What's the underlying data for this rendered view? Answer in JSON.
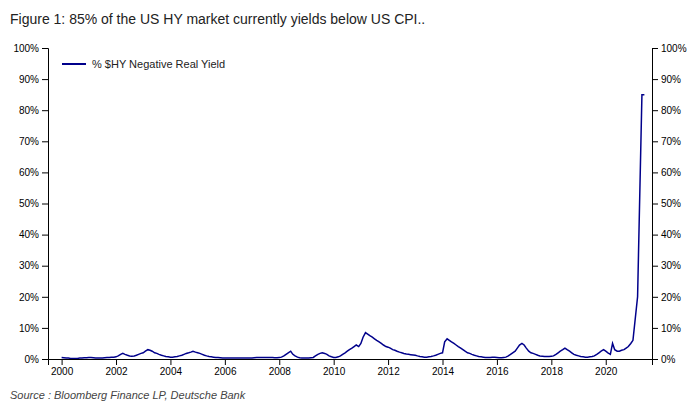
{
  "chart_data": {
    "type": "line",
    "title": "Figure 1: 85% of the US HY market currently yields below US CPI..",
    "annotations": [
      "Source : Bloomberg Finance LP, Deutsche Bank"
    ],
    "x": [
      2000.0,
      2000.08,
      2000.17,
      2000.25,
      2000.33,
      2000.42,
      2000.5,
      2000.58,
      2000.67,
      2000.75,
      2000.83,
      2000.92,
      2001.0,
      2001.08,
      2001.17,
      2001.25,
      2001.33,
      2001.42,
      2001.5,
      2001.58,
      2001.67,
      2001.75,
      2001.83,
      2001.92,
      2002.0,
      2002.08,
      2002.17,
      2002.25,
      2002.33,
      2002.42,
      2002.5,
      2002.58,
      2002.67,
      2002.75,
      2002.83,
      2002.92,
      2003.0,
      2003.08,
      2003.17,
      2003.25,
      2003.33,
      2003.42,
      2003.5,
      2003.58,
      2003.67,
      2003.75,
      2003.83,
      2003.92,
      2004.0,
      2004.08,
      2004.17,
      2004.25,
      2004.33,
      2004.42,
      2004.5,
      2004.58,
      2004.67,
      2004.75,
      2004.83,
      2004.92,
      2005.0,
      2005.08,
      2005.17,
      2005.25,
      2005.33,
      2005.42,
      2005.5,
      2005.58,
      2005.67,
      2005.75,
      2005.83,
      2005.92,
      2006.0,
      2006.08,
      2006.17,
      2006.25,
      2006.33,
      2006.42,
      2006.5,
      2006.58,
      2006.67,
      2006.75,
      2006.83,
      2006.92,
      2007.0,
      2007.08,
      2007.17,
      2007.25,
      2007.33,
      2007.42,
      2007.5,
      2007.58,
      2007.67,
      2007.75,
      2007.83,
      2007.92,
      2008.0,
      2008.08,
      2008.17,
      2008.25,
      2008.33,
      2008.42,
      2008.5,
      2008.58,
      2008.67,
      2008.75,
      2008.83,
      2008.92,
      2009.0,
      2009.08,
      2009.17,
      2009.25,
      2009.33,
      2009.42,
      2009.5,
      2009.58,
      2009.67,
      2009.75,
      2009.83,
      2009.92,
      2010.0,
      2010.08,
      2010.17,
      2010.25,
      2010.33,
      2010.42,
      2010.5,
      2010.58,
      2010.67,
      2010.75,
      2010.83,
      2010.92,
      2011.0,
      2011.08,
      2011.17,
      2011.25,
      2011.33,
      2011.42,
      2011.5,
      2011.58,
      2011.67,
      2011.75,
      2011.83,
      2011.92,
      2012.0,
      2012.08,
      2012.17,
      2012.25,
      2012.33,
      2012.42,
      2012.5,
      2012.58,
      2012.67,
      2012.75,
      2012.83,
      2012.92,
      2013.0,
      2013.08,
      2013.17,
      2013.25,
      2013.33,
      2013.42,
      2013.5,
      2013.58,
      2013.67,
      2013.75,
      2013.83,
      2013.92,
      2014.0,
      2014.08,
      2014.17,
      2014.25,
      2014.33,
      2014.42,
      2014.5,
      2014.58,
      2014.67,
      2014.75,
      2014.83,
      2014.92,
      2015.0,
      2015.08,
      2015.17,
      2015.25,
      2015.33,
      2015.42,
      2015.5,
      2015.58,
      2015.67,
      2015.75,
      2015.83,
      2015.92,
      2016.0,
      2016.08,
      2016.17,
      2016.25,
      2016.33,
      2016.42,
      2016.5,
      2016.58,
      2016.67,
      2016.75,
      2016.83,
      2016.92,
      2017.0,
      2017.08,
      2017.17,
      2017.25,
      2017.33,
      2017.42,
      2017.5,
      2017.58,
      2017.67,
      2017.75,
      2017.83,
      2017.92,
      2018.0,
      2018.08,
      2018.17,
      2018.25,
      2018.33,
      2018.42,
      2018.5,
      2018.58,
      2018.67,
      2018.75,
      2018.83,
      2018.92,
      2019.0,
      2019.08,
      2019.17,
      2019.25,
      2019.33,
      2019.42,
      2019.5,
      2019.58,
      2019.67,
      2019.75,
      2019.83,
      2019.92,
      2020.0,
      2020.08,
      2020.17,
      2020.25,
      2020.33,
      2020.42,
      2020.5,
      2020.58,
      2020.67,
      2020.75,
      2020.83,
      2020.92,
      2021.0,
      2021.17,
      2021.33,
      2021.42
    ],
    "series": [
      {
        "name": "% $HY Negative Real Yield",
        "color": "#00008B",
        "values": [
          0.5,
          0.4,
          0.3,
          0.3,
          0.2,
          0.2,
          0.2,
          0.2,
          0.3,
          0.3,
          0.4,
          0.4,
          0.5,
          0.5,
          0.4,
          0.3,
          0.3,
          0.3,
          0.3,
          0.4,
          0.5,
          0.5,
          0.6,
          0.6,
          0.7,
          1.0,
          1.5,
          1.8,
          1.5,
          1.2,
          1.0,
          0.9,
          1.0,
          1.2,
          1.5,
          1.8,
          2.0,
          2.5,
          3.0,
          2.8,
          2.5,
          2.0,
          1.8,
          1.5,
          1.2,
          1.0,
          0.8,
          0.7,
          0.6,
          0.6,
          0.7,
          0.8,
          1.0,
          1.2,
          1.5,
          1.8,
          2.0,
          2.2,
          2.5,
          2.2,
          2.0,
          1.8,
          1.5,
          1.2,
          1.0,
          0.8,
          0.7,
          0.6,
          0.5,
          0.5,
          0.4,
          0.3,
          0.3,
          0.3,
          0.3,
          0.3,
          0.3,
          0.3,
          0.3,
          0.3,
          0.3,
          0.3,
          0.3,
          0.3,
          0.3,
          0.4,
          0.5,
          0.5,
          0.5,
          0.5,
          0.5,
          0.5,
          0.5,
          0.5,
          0.4,
          0.4,
          0.5,
          0.6,
          1.0,
          1.5,
          2.0,
          2.5,
          1.5,
          1.0,
          0.6,
          0.4,
          0.3,
          0.3,
          0.3,
          0.3,
          0.4,
          0.5,
          1.0,
          1.5,
          1.8,
          2.0,
          1.8,
          1.5,
          1.0,
          0.7,
          0.5,
          0.5,
          0.7,
          1.0,
          1.5,
          2.0,
          2.5,
          3.0,
          3.5,
          4.0,
          4.5,
          4.0,
          5.0,
          7.0,
          8.5,
          8.0,
          7.5,
          7.0,
          6.5,
          6.0,
          5.5,
          5.0,
          4.5,
          4.0,
          3.8,
          3.5,
          3.0,
          2.8,
          2.5,
          2.2,
          2.0,
          1.8,
          1.6,
          1.5,
          1.4,
          1.3,
          1.2,
          1.0,
          0.8,
          0.7,
          0.6,
          0.6,
          0.7,
          0.8,
          1.0,
          1.2,
          1.5,
          1.8,
          2.0,
          5.5,
          6.5,
          6.0,
          5.5,
          5.0,
          4.5,
          4.0,
          3.5,
          3.0,
          2.5,
          2.0,
          1.8,
          1.5,
          1.2,
          1.0,
          0.8,
          0.7,
          0.6,
          0.5,
          0.5,
          0.5,
          0.6,
          0.6,
          0.5,
          0.4,
          0.4,
          0.5,
          0.6,
          1.0,
          1.5,
          2.0,
          2.5,
          3.5,
          4.5,
          5.0,
          4.5,
          3.5,
          2.5,
          2.0,
          1.8,
          1.5,
          1.2,
          1.0,
          0.9,
          0.8,
          0.8,
          0.8,
          0.9,
          1.0,
          1.5,
          2.0,
          2.5,
          3.0,
          3.5,
          3.0,
          2.5,
          2.0,
          1.5,
          1.2,
          1.0,
          0.8,
          0.7,
          0.6,
          0.6,
          0.7,
          0.8,
          1.0,
          1.5,
          2.0,
          2.5,
          3.0,
          2.5,
          2.0,
          1.5,
          5.0,
          3.0,
          2.5,
          2.5,
          2.8,
          3.0,
          3.5,
          4.0,
          5.0,
          6.0,
          20.0,
          85.0,
          85.0
        ]
      }
    ],
    "xlim": [
      1999.5,
      2021.7
    ],
    "xticks": [
      2000,
      2002,
      2004,
      2006,
      2008,
      2010,
      2012,
      2014,
      2016,
      2018,
      2020
    ],
    "ylim": [
      0,
      100
    ],
    "yticks": [
      {
        "value": 0,
        "label": "0%"
      },
      {
        "value": 10,
        "label": "10%"
      },
      {
        "value": 20,
        "label": "20%"
      },
      {
        "value": 30,
        "label": "30%"
      },
      {
        "value": 40,
        "label": "40%"
      },
      {
        "value": 50,
        "label": "50%"
      },
      {
        "value": 60,
        "label": "60%"
      },
      {
        "value": 70,
        "label": "70%"
      },
      {
        "value": 80,
        "label": "80%"
      },
      {
        "value": 90,
        "label": "90%"
      },
      {
        "value": 100,
        "label": "100%"
      }
    ],
    "y2lim": [
      0,
      100
    ],
    "y2ticks": [
      {
        "value": 0,
        "label": "0%"
      },
      {
        "value": 10,
        "label": "10%"
      },
      {
        "value": 20,
        "label": "20%"
      },
      {
        "value": 30,
        "label": "30%"
      },
      {
        "value": 40,
        "label": "40%"
      },
      {
        "value": 50,
        "label": "50%"
      },
      {
        "value": 60,
        "label": "60%"
      },
      {
        "value": 70,
        "label": "70%"
      },
      {
        "value": 80,
        "label": "80%"
      },
      {
        "value": 90,
        "label": "90%"
      },
      {
        "value": 100,
        "label": "100%"
      }
    ],
    "grid": false,
    "legend": "top-left"
  }
}
